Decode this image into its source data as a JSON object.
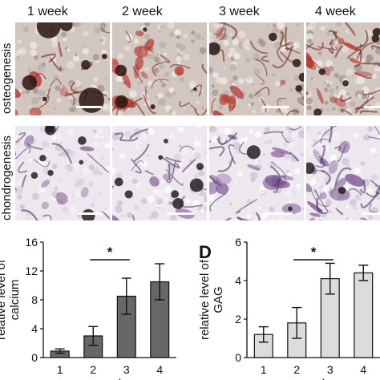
{
  "week_headers": [
    "1 week",
    "2 week",
    "3 week",
    "4 week"
  ],
  "row_labels": {
    "top": "osteogenesis",
    "bottom": "chondrogenesis"
  },
  "panel_letter_d": "D",
  "colors": {
    "osteo_bg": "#d2c6c0",
    "osteo_stain": "#b5231c",
    "osteo_dark": "#2a1512",
    "chondro_bg": "#ece8ee",
    "chondro_stain": "#7d5592",
    "chondro_dark": "#2b1d25",
    "bar_calcium": "#676767",
    "bar_gag": "#dcdcdc",
    "scale_bar": "#ffffff"
  },
  "chart_data": [
    {
      "type": "bar",
      "categories": [
        "1",
        "2",
        "3",
        "4"
      ],
      "values": [
        0.9,
        3.0,
        8.5,
        10.5
      ],
      "errors": [
        0.3,
        1.3,
        2.5,
        2.5
      ],
      "xlabel": "week",
      "ylabel": "relative level of calcium",
      "ylim": [
        0,
        16
      ],
      "yticks": [
        0,
        4,
        8,
        12,
        16
      ],
      "significance": {
        "from": "2",
        "to": "3",
        "label": "*"
      }
    },
    {
      "type": "bar",
      "categories": [
        "1",
        "2",
        "3",
        "4"
      ],
      "values": [
        1.2,
        1.8,
        4.1,
        4.4
      ],
      "errors": [
        0.4,
        0.8,
        0.8,
        0.4
      ],
      "xlabel": "week",
      "ylabel": "relative level of GAG",
      "ylim": [
        0,
        6
      ],
      "yticks": [
        0,
        2,
        4,
        6
      ],
      "significance": {
        "from": "2",
        "to": "3",
        "label": "*"
      }
    }
  ]
}
